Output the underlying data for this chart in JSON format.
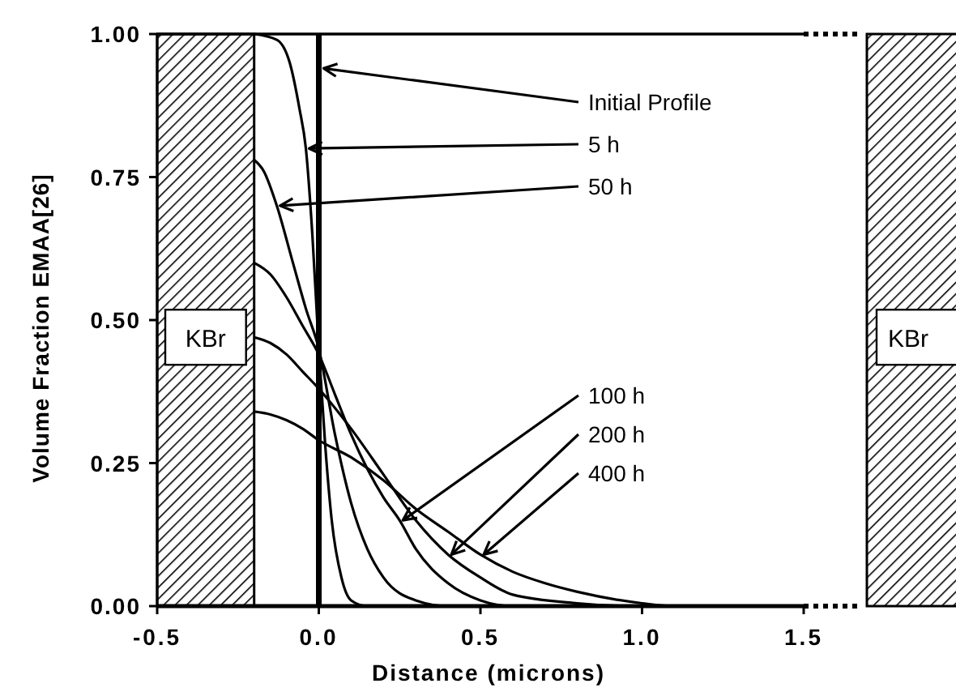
{
  "chart_data": {
    "type": "line",
    "xlabel": "Distance (microns)",
    "ylabel": "Volume Fraction EMAA[26]",
    "xlim": [
      -0.5,
      1.5
    ],
    "ylim": [
      0,
      1
    ],
    "xticks": [
      {
        "value": -0.5,
        "label": "-0.5"
      },
      {
        "value": 0,
        "label": "0.0"
      },
      {
        "value": 0.5,
        "label": "0.5"
      },
      {
        "value": 1,
        "label": "1.0"
      },
      {
        "value": 1.5,
        "label": "1.5"
      }
    ],
    "yticks": [
      {
        "value": 0,
        "label": "0.00"
      },
      {
        "value": 0.25,
        "label": "0.25"
      },
      {
        "value": 0.5,
        "label": "0.50"
      },
      {
        "value": 0.75,
        "label": "0.75"
      },
      {
        "value": 1,
        "label": "1.00"
      }
    ],
    "grid": false,
    "marker": "none",
    "line_style": "solid",
    "series": [
      {
        "color": "#000000",
        "x": [
          -0.2,
          -0.13,
          -0.09,
          -0.06,
          -0.04,
          -0.02,
          0,
          0.02,
          0.04,
          0.07,
          0.1,
          0.15,
          1.5
        ],
        "values": [
          1,
          0.99,
          0.95,
          0.87,
          0.8,
          0.65,
          0.45,
          0.28,
          0.15,
          0.05,
          0.01,
          0,
          0
        ]
      },
      {
        "color": "#000000",
        "x": [
          -0.2,
          -0.17,
          -0.13,
          -0.08,
          -0.04,
          0,
          0.05,
          0.1,
          0.15,
          0.2,
          0.3,
          0.4,
          1.5
        ],
        "values": [
          0.78,
          0.76,
          0.7,
          0.6,
          0.52,
          0.45,
          0.3,
          0.18,
          0.1,
          0.05,
          0.01,
          0,
          0
        ]
      },
      {
        "color": "#000000",
        "x": [
          -0.2,
          -0.15,
          -0.1,
          -0.05,
          0,
          0.05,
          0.1,
          0.15,
          0.2,
          0.25,
          0.3,
          0.4,
          0.5,
          0.6,
          1.5
        ],
        "values": [
          0.6,
          0.58,
          0.54,
          0.49,
          0.44,
          0.37,
          0.3,
          0.24,
          0.19,
          0.15,
          0.1,
          0.04,
          0.01,
          0,
          0
        ]
      },
      {
        "color": "#000000",
        "x": [
          -0.2,
          -0.15,
          -0.1,
          -0.05,
          0,
          0.1,
          0.2,
          0.3,
          0.4,
          0.5,
          0.6,
          0.8,
          1.0,
          1.5
        ],
        "values": [
          0.47,
          0.46,
          0.44,
          0.41,
          0.38,
          0.31,
          0.23,
          0.15,
          0.09,
          0.05,
          0.02,
          0.005,
          0,
          0
        ]
      },
      {
        "color": "#000000",
        "x": [
          -0.2,
          -0.15,
          -0.1,
          -0.05,
          0,
          0.1,
          0.2,
          0.3,
          0.4,
          0.5,
          0.6,
          0.7,
          0.8,
          1.0,
          1.1,
          1.5
        ],
        "values": [
          0.34,
          0.335,
          0.325,
          0.31,
          0.29,
          0.26,
          0.22,
          0.17,
          0.13,
          0.09,
          0.06,
          0.04,
          0.025,
          0.005,
          0,
          0
        ]
      }
    ],
    "bands": [
      {
        "axis": "x",
        "from": -0.5,
        "to": -0.2,
        "label": "KBr"
      }
    ],
    "ref_lines": [
      {
        "axis": "x",
        "value": 0,
        "label": "Initial Profile"
      }
    ],
    "annotations": [
      {
        "text": "5 h",
        "x": -0.04,
        "y": 0.8
      },
      {
        "text": "50 h",
        "x": -0.13,
        "y": 0.7
      },
      {
        "text": "100 h",
        "x": 0.25,
        "y": 0.15
      },
      {
        "text": "200 h",
        "x": 0.4,
        "y": 0.09
      },
      {
        "text": "400 h",
        "x": 0.5,
        "y": 0.09
      },
      "KBr"
    ]
  }
}
